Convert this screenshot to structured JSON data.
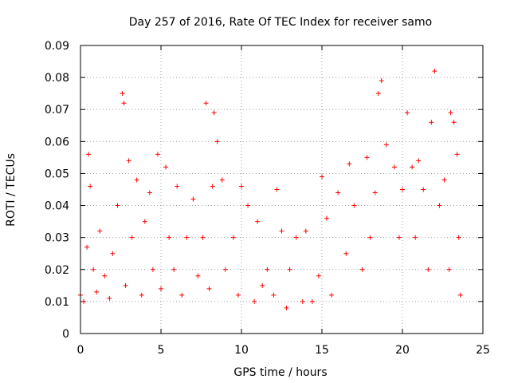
{
  "chart_data": {
    "type": "scatter",
    "title": "Day 257 of 2016, Rate Of TEC Index for receiver samo",
    "xlabel": "GPS time / hours",
    "ylabel": "ROTI / TECUs",
    "xlim": [
      0,
      25
    ],
    "ylim": [
      0,
      0.09
    ],
    "x_ticks": [
      0,
      5,
      10,
      15,
      20,
      25
    ],
    "y_ticks": [
      0,
      0.01,
      0.02,
      0.03,
      0.04,
      0.05,
      0.06,
      0.07,
      0.08,
      0.09
    ],
    "x_tick_labels": [
      "0",
      "5",
      "10",
      "15",
      "20",
      "25"
    ],
    "y_tick_labels": [
      "0",
      "0.01",
      "0.02",
      "0.03",
      "0.04",
      "0.05",
      "0.06",
      "0.07",
      "0.08",
      "0.09"
    ],
    "grid": true,
    "marker": "+",
    "series": [
      {
        "name": "ROTI",
        "color": "#ff0000",
        "x": [
          0.0,
          0.2,
          0.4,
          0.5,
          0.6,
          0.8,
          1.0,
          1.2,
          1.5,
          1.8,
          2.0,
          2.3,
          2.6,
          2.7,
          2.8,
          3.0,
          3.2,
          3.5,
          3.8,
          4.0,
          4.3,
          4.5,
          4.8,
          5.0,
          5.3,
          5.5,
          5.8,
          6.0,
          6.3,
          6.6,
          7.0,
          7.3,
          7.6,
          7.8,
          8.0,
          8.2,
          8.3,
          8.5,
          8.8,
          9.0,
          9.5,
          9.8,
          10.0,
          10.4,
          10.8,
          11.0,
          11.3,
          11.6,
          12.0,
          12.2,
          12.5,
          12.8,
          13.0,
          13.4,
          13.8,
          14.0,
          14.4,
          14.8,
          15.0,
          15.3,
          15.6,
          16.0,
          16.5,
          16.7,
          17.0,
          17.5,
          17.8,
          18.0,
          18.3,
          18.5,
          18.7,
          19.0,
          19.5,
          19.8,
          20.0,
          20.3,
          20.6,
          20.8,
          21.0,
          21.3,
          21.6,
          21.8,
          22.0,
          22.3,
          22.6,
          22.9,
          23.0,
          23.2,
          23.4,
          23.5,
          23.6
        ],
        "y": [
          0.012,
          0.01,
          0.027,
          0.056,
          0.046,
          0.02,
          0.013,
          0.032,
          0.018,
          0.011,
          0.025,
          0.04,
          0.075,
          0.072,
          0.015,
          0.054,
          0.03,
          0.048,
          0.012,
          0.035,
          0.044,
          0.02,
          0.056,
          0.014,
          0.052,
          0.03,
          0.02,
          0.046,
          0.012,
          0.03,
          0.042,
          0.018,
          0.03,
          0.072,
          0.014,
          0.046,
          0.069,
          0.06,
          0.048,
          0.02,
          0.03,
          0.012,
          0.046,
          0.04,
          0.01,
          0.035,
          0.015,
          0.02,
          0.012,
          0.045,
          0.032,
          0.008,
          0.02,
          0.03,
          0.01,
          0.032,
          0.01,
          0.018,
          0.049,
          0.036,
          0.012,
          0.044,
          0.025,
          0.053,
          0.04,
          0.02,
          0.055,
          0.03,
          0.044,
          0.075,
          0.079,
          0.059,
          0.052,
          0.03,
          0.045,
          0.069,
          0.052,
          0.03,
          0.054,
          0.045,
          0.02,
          0.066,
          0.082,
          0.04,
          0.048,
          0.02,
          0.069,
          0.066,
          0.056,
          0.03,
          0.012
        ]
      }
    ]
  }
}
